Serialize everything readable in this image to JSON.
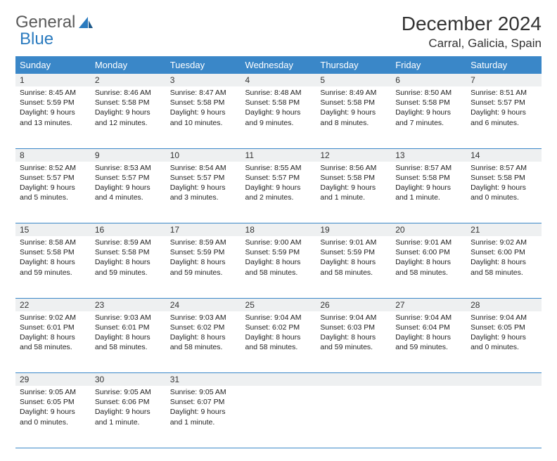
{
  "logo": {
    "text1": "General",
    "text2": "Blue"
  },
  "title": "December 2024",
  "location": "Carral, Galicia, Spain",
  "colors": {
    "header_bg": "#3a87c8",
    "header_text": "#ffffff",
    "daynum_bg": "#eef0f1",
    "rule": "#3a87c8",
    "logo_gray": "#5a5a5a",
    "logo_blue": "#2b7bbf"
  },
  "weekdays": [
    "Sunday",
    "Monday",
    "Tuesday",
    "Wednesday",
    "Thursday",
    "Friday",
    "Saturday"
  ],
  "weeks": [
    [
      {
        "n": "1",
        "sr": "Sunrise: 8:45 AM",
        "ss": "Sunset: 5:59 PM",
        "d1": "Daylight: 9 hours",
        "d2": "and 13 minutes."
      },
      {
        "n": "2",
        "sr": "Sunrise: 8:46 AM",
        "ss": "Sunset: 5:58 PM",
        "d1": "Daylight: 9 hours",
        "d2": "and 12 minutes."
      },
      {
        "n": "3",
        "sr": "Sunrise: 8:47 AM",
        "ss": "Sunset: 5:58 PM",
        "d1": "Daylight: 9 hours",
        "d2": "and 10 minutes."
      },
      {
        "n": "4",
        "sr": "Sunrise: 8:48 AM",
        "ss": "Sunset: 5:58 PM",
        "d1": "Daylight: 9 hours",
        "d2": "and 9 minutes."
      },
      {
        "n": "5",
        "sr": "Sunrise: 8:49 AM",
        "ss": "Sunset: 5:58 PM",
        "d1": "Daylight: 9 hours",
        "d2": "and 8 minutes."
      },
      {
        "n": "6",
        "sr": "Sunrise: 8:50 AM",
        "ss": "Sunset: 5:58 PM",
        "d1": "Daylight: 9 hours",
        "d2": "and 7 minutes."
      },
      {
        "n": "7",
        "sr": "Sunrise: 8:51 AM",
        "ss": "Sunset: 5:57 PM",
        "d1": "Daylight: 9 hours",
        "d2": "and 6 minutes."
      }
    ],
    [
      {
        "n": "8",
        "sr": "Sunrise: 8:52 AM",
        "ss": "Sunset: 5:57 PM",
        "d1": "Daylight: 9 hours",
        "d2": "and 5 minutes."
      },
      {
        "n": "9",
        "sr": "Sunrise: 8:53 AM",
        "ss": "Sunset: 5:57 PM",
        "d1": "Daylight: 9 hours",
        "d2": "and 4 minutes."
      },
      {
        "n": "10",
        "sr": "Sunrise: 8:54 AM",
        "ss": "Sunset: 5:57 PM",
        "d1": "Daylight: 9 hours",
        "d2": "and 3 minutes."
      },
      {
        "n": "11",
        "sr": "Sunrise: 8:55 AM",
        "ss": "Sunset: 5:57 PM",
        "d1": "Daylight: 9 hours",
        "d2": "and 2 minutes."
      },
      {
        "n": "12",
        "sr": "Sunrise: 8:56 AM",
        "ss": "Sunset: 5:58 PM",
        "d1": "Daylight: 9 hours",
        "d2": "and 1 minute."
      },
      {
        "n": "13",
        "sr": "Sunrise: 8:57 AM",
        "ss": "Sunset: 5:58 PM",
        "d1": "Daylight: 9 hours",
        "d2": "and 1 minute."
      },
      {
        "n": "14",
        "sr": "Sunrise: 8:57 AM",
        "ss": "Sunset: 5:58 PM",
        "d1": "Daylight: 9 hours",
        "d2": "and 0 minutes."
      }
    ],
    [
      {
        "n": "15",
        "sr": "Sunrise: 8:58 AM",
        "ss": "Sunset: 5:58 PM",
        "d1": "Daylight: 8 hours",
        "d2": "and 59 minutes."
      },
      {
        "n": "16",
        "sr": "Sunrise: 8:59 AM",
        "ss": "Sunset: 5:58 PM",
        "d1": "Daylight: 8 hours",
        "d2": "and 59 minutes."
      },
      {
        "n": "17",
        "sr": "Sunrise: 8:59 AM",
        "ss": "Sunset: 5:59 PM",
        "d1": "Daylight: 8 hours",
        "d2": "and 59 minutes."
      },
      {
        "n": "18",
        "sr": "Sunrise: 9:00 AM",
        "ss": "Sunset: 5:59 PM",
        "d1": "Daylight: 8 hours",
        "d2": "and 58 minutes."
      },
      {
        "n": "19",
        "sr": "Sunrise: 9:01 AM",
        "ss": "Sunset: 5:59 PM",
        "d1": "Daylight: 8 hours",
        "d2": "and 58 minutes."
      },
      {
        "n": "20",
        "sr": "Sunrise: 9:01 AM",
        "ss": "Sunset: 6:00 PM",
        "d1": "Daylight: 8 hours",
        "d2": "and 58 minutes."
      },
      {
        "n": "21",
        "sr": "Sunrise: 9:02 AM",
        "ss": "Sunset: 6:00 PM",
        "d1": "Daylight: 8 hours",
        "d2": "and 58 minutes."
      }
    ],
    [
      {
        "n": "22",
        "sr": "Sunrise: 9:02 AM",
        "ss": "Sunset: 6:01 PM",
        "d1": "Daylight: 8 hours",
        "d2": "and 58 minutes."
      },
      {
        "n": "23",
        "sr": "Sunrise: 9:03 AM",
        "ss": "Sunset: 6:01 PM",
        "d1": "Daylight: 8 hours",
        "d2": "and 58 minutes."
      },
      {
        "n": "24",
        "sr": "Sunrise: 9:03 AM",
        "ss": "Sunset: 6:02 PM",
        "d1": "Daylight: 8 hours",
        "d2": "and 58 minutes."
      },
      {
        "n": "25",
        "sr": "Sunrise: 9:04 AM",
        "ss": "Sunset: 6:02 PM",
        "d1": "Daylight: 8 hours",
        "d2": "and 58 minutes."
      },
      {
        "n": "26",
        "sr": "Sunrise: 9:04 AM",
        "ss": "Sunset: 6:03 PM",
        "d1": "Daylight: 8 hours",
        "d2": "and 59 minutes."
      },
      {
        "n": "27",
        "sr": "Sunrise: 9:04 AM",
        "ss": "Sunset: 6:04 PM",
        "d1": "Daylight: 8 hours",
        "d2": "and 59 minutes."
      },
      {
        "n": "28",
        "sr": "Sunrise: 9:04 AM",
        "ss": "Sunset: 6:05 PM",
        "d1": "Daylight: 9 hours",
        "d2": "and 0 minutes."
      }
    ],
    [
      {
        "n": "29",
        "sr": "Sunrise: 9:05 AM",
        "ss": "Sunset: 6:05 PM",
        "d1": "Daylight: 9 hours",
        "d2": "and 0 minutes."
      },
      {
        "n": "30",
        "sr": "Sunrise: 9:05 AM",
        "ss": "Sunset: 6:06 PM",
        "d1": "Daylight: 9 hours",
        "d2": "and 1 minute."
      },
      {
        "n": "31",
        "sr": "Sunrise: 9:05 AM",
        "ss": "Sunset: 6:07 PM",
        "d1": "Daylight: 9 hours",
        "d2": "and 1 minute."
      },
      null,
      null,
      null,
      null
    ]
  ]
}
